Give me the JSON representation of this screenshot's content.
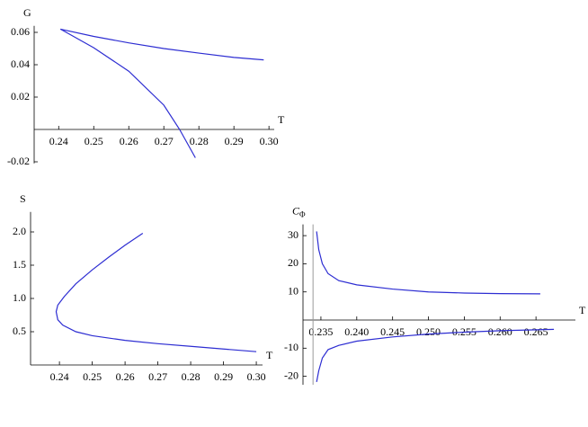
{
  "chart_data": [
    {
      "type": "line",
      "xlabel": "T",
      "ylabel": "G",
      "xlim": [
        0.233,
        0.3015
      ],
      "ylim": [
        -0.021,
        0.064
      ],
      "xticks": [
        0.24,
        0.25,
        0.26,
        0.27,
        0.28,
        0.29,
        {
          "value": 0.3,
          "label": "0.30"
        }
      ],
      "yticks": [
        -0.02,
        0.02,
        0.04,
        0.06
      ],
      "series": [
        {
          "color": "#2d2dd2",
          "x": [
            0.2405,
            0.25,
            0.26,
            0.27,
            0.28,
            0.29,
            0.2985
          ],
          "values": [
            0.062,
            0.0575,
            0.0535,
            0.05,
            0.0472,
            0.0445,
            0.043
          ]
        },
        {
          "color": "#2d2dd2",
          "x": [
            0.2405,
            0.25,
            0.26,
            0.27,
            0.2745,
            0.279
          ],
          "values": [
            0.062,
            0.0505,
            0.036,
            0.015,
            0,
            -0.0175
          ]
        }
      ]
    },
    {
      "type": "line",
      "xlabel": "T",
      "ylabel": "S",
      "xlim": [
        0.2312,
        0.3019
      ],
      "ylim": [
        0,
        2.3
      ],
      "xticks": [
        0.24,
        0.25,
        0.26,
        0.27,
        0.28,
        0.29,
        {
          "value": 0.3,
          "label": "0.30"
        }
      ],
      "yticks": [
        0.5,
        {
          "value": 1,
          "label": "1.0"
        },
        1.5,
        {
          "value": 2,
          "label": "2.0"
        }
      ],
      "series": [
        {
          "color": "#2d2dd2",
          "x": [
            0.2654,
            0.26,
            0.255,
            0.25,
            0.245,
            0.2415,
            0.2395,
            0.239,
            0.2395,
            0.241,
            0.245,
            0.25,
            0.26,
            0.27,
            0.28,
            0.29,
            0.3
          ],
          "values": [
            1.98,
            1.8,
            1.62,
            1.43,
            1.22,
            1.03,
            0.9,
            0.8,
            0.68,
            0.6,
            0.5,
            0.44,
            0.37,
            0.32,
            0.28,
            0.24,
            0.2
          ]
        }
      ]
    },
    {
      "type": "line",
      "xlabel": "T",
      "ylabel": "C",
      "ylabel_sub": "Φ",
      "xlim": [
        0.2325,
        0.2705
      ],
      "ylim": [
        -23,
        34
      ],
      "xticks": [
        0.235,
        {
          "value": 0.24,
          "label": "0.240"
        },
        0.245,
        {
          "value": 0.25,
          "label": "0.250"
        },
        0.255,
        {
          "value": 0.26,
          "label": "0.260"
        },
        0.265
      ],
      "yticks": [
        -20,
        -10,
        10,
        20,
        30
      ],
      "vlines": [
        0.2339
      ],
      "vline_color": "#999999",
      "series": [
        {
          "color": "#2d2dd2",
          "x": [
            0.2344,
            0.2347,
            0.2352,
            0.236,
            0.2375,
            0.24,
            0.245,
            0.25,
            0.255,
            0.26,
            0.2656
          ],
          "values": [
            31.5,
            25,
            20,
            16.5,
            14,
            12.5,
            11,
            10,
            9.6,
            9.4,
            9.3
          ]
        },
        {
          "color": "#2d2dd2",
          "x": [
            0.2344,
            0.2347,
            0.2352,
            0.236,
            0.2375,
            0.24,
            0.245,
            0.25,
            0.255,
            0.26,
            0.2675
          ],
          "values": [
            -22,
            -18,
            -13.5,
            -10.5,
            -9,
            -7.5,
            -6,
            -5,
            -4.3,
            -3.8,
            -3.3
          ]
        }
      ]
    }
  ]
}
